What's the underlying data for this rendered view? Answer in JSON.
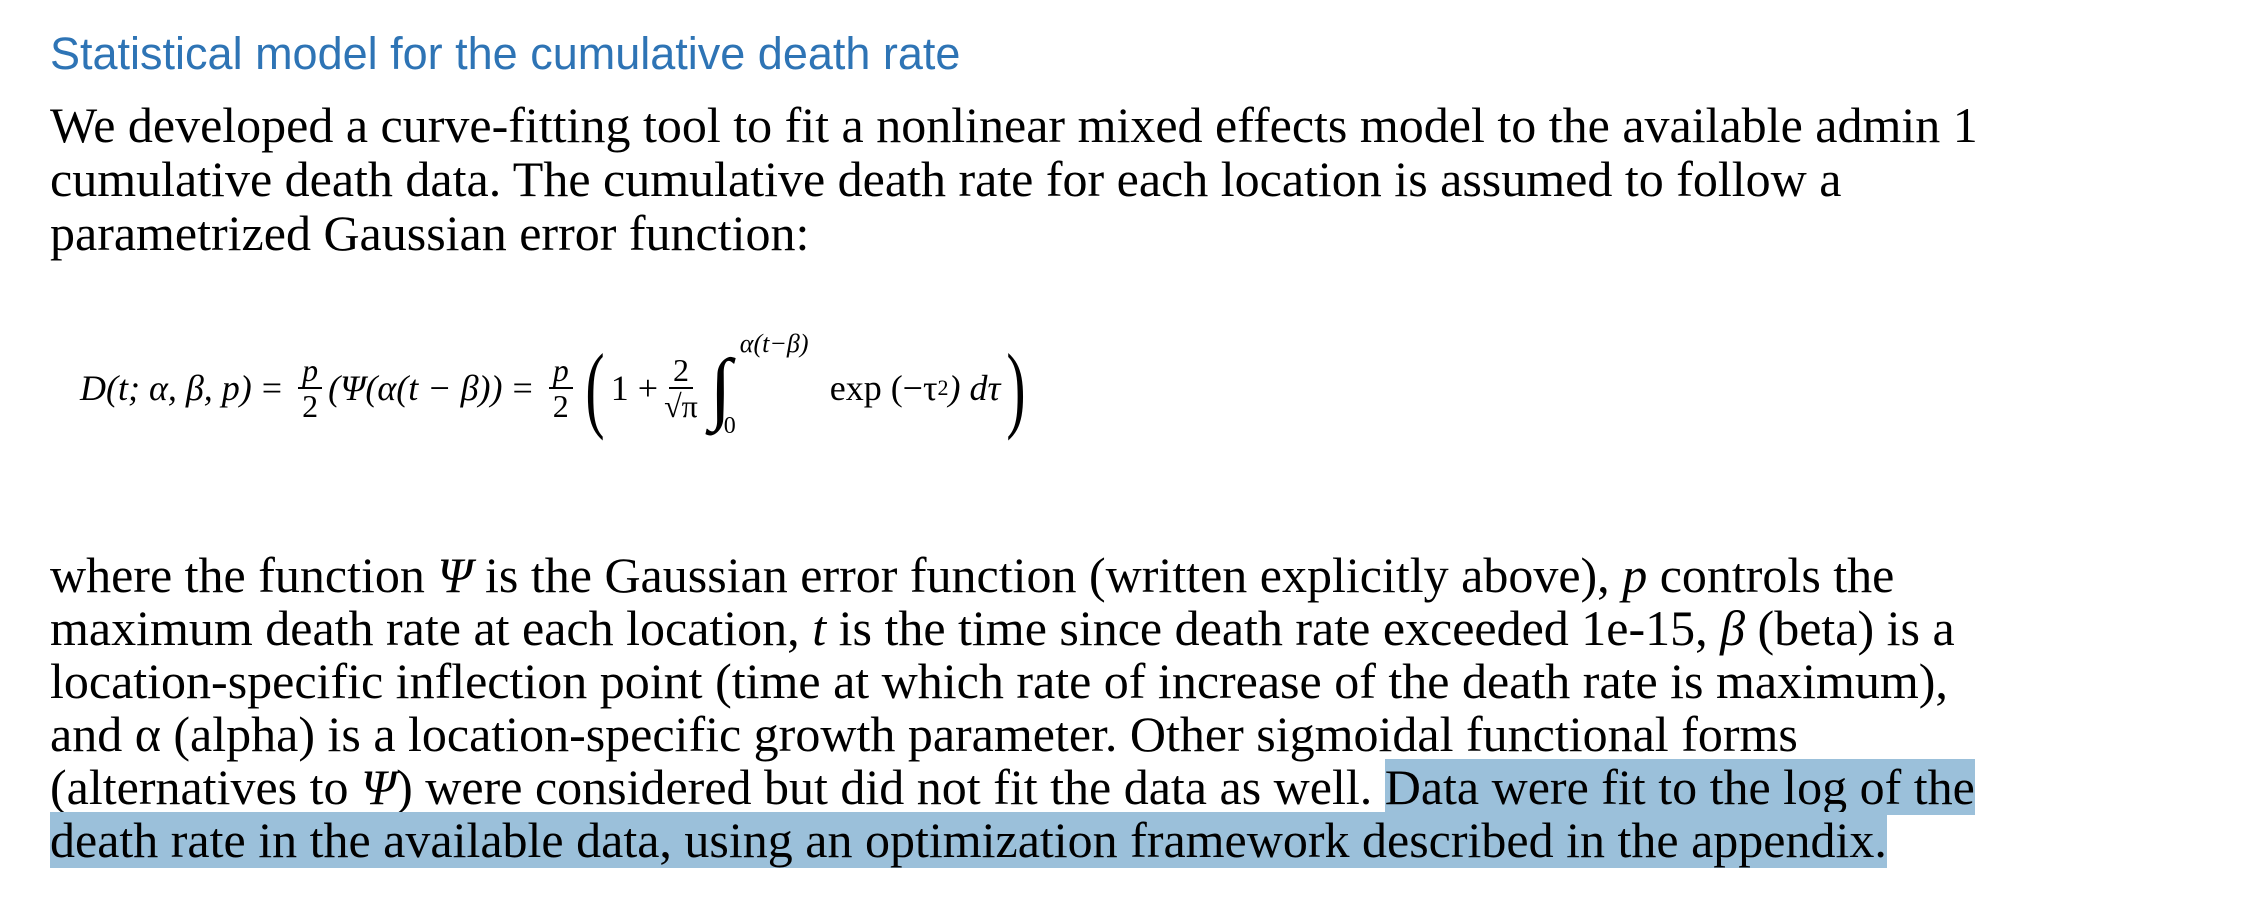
{
  "title": "Statistical model for the cumulative death rate",
  "intro_lines": [
    "We developed a curve-fitting tool to fit a nonlinear mixed effects model to the available admin 1",
    "cumulative death data. The cumulative death rate for each location is assumed to follow a",
    "parametrized Gaussian error function:"
  ],
  "equation": {
    "lhs": "D(t; α, β, p)",
    "eq": "=",
    "p": "p",
    "two": "2",
    "psi_term": "(Ψ(α(t − β))",
    "one_plus": "1 +",
    "sqrt_pi": "√π",
    "upper_limit": "α(t−β)",
    "lower_limit": "0",
    "integrand": "exp (−τ",
    "exp_sup": "2",
    "integrand_end": ") dτ"
  },
  "colors": {
    "title": "#2E74B5",
    "highlight": "#9BC0DA",
    "text": "#000000"
  },
  "paragraph_lines": [
    [
      {
        "t": "where the function "
      },
      {
        "t": "Ψ",
        "i": true
      },
      {
        "t": " is the Gaussian error function (written explicitly above), "
      },
      {
        "t": "p",
        "i": true
      },
      {
        "t": " controls the"
      }
    ],
    [
      {
        "t": "maximum death rate at each location, "
      },
      {
        "t": "t",
        "i": true
      },
      {
        "t": " is the time since death rate exceeded 1e-15, "
      },
      {
        "t": "β",
        "i": true
      },
      {
        "t": " (beta) is a"
      }
    ],
    [
      {
        "t": "location-specific inflection point (time at which rate of increase of the death rate is maximum),"
      }
    ],
    [
      {
        "t": "and α (alpha) is a location-specific growth parameter. Other sigmoidal functional forms"
      }
    ],
    [
      {
        "t": "(alternatives to "
      },
      {
        "t": "Ψ",
        "i": true
      },
      {
        "t": ") were considered but did not fit the data as well. "
      },
      {
        "t": "Data were fit to the log of the",
        "h": true
      }
    ],
    [
      {
        "t": "death rate in the available data, using an optimization framework described in the appendix.",
        "h": true
      }
    ]
  ]
}
